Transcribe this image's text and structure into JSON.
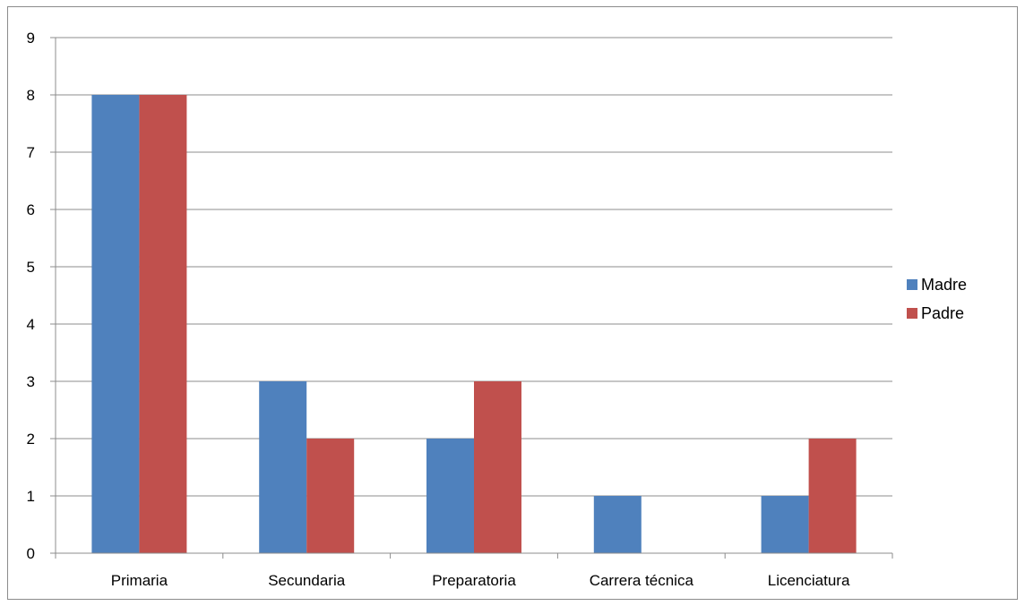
{
  "chart_data": {
    "type": "bar",
    "title": "",
    "xlabel": "",
    "ylabel": "",
    "categories": [
      "Primaria",
      "Secundaria",
      "Preparatoria",
      "Carrera técnica",
      "Licenciatura"
    ],
    "series": [
      {
        "name": "Madre",
        "color": "#4F81BD",
        "values": [
          8,
          3,
          2,
          1,
          1
        ]
      },
      {
        "name": "Padre",
        "color": "#C0504D",
        "values": [
          8,
          2,
          3,
          0,
          2
        ]
      }
    ],
    "ylim": [
      0,
      9
    ],
    "yticks": [
      0,
      1,
      2,
      3,
      4,
      5,
      6,
      7,
      8,
      9
    ],
    "grid": true,
    "legend_position": "right"
  }
}
